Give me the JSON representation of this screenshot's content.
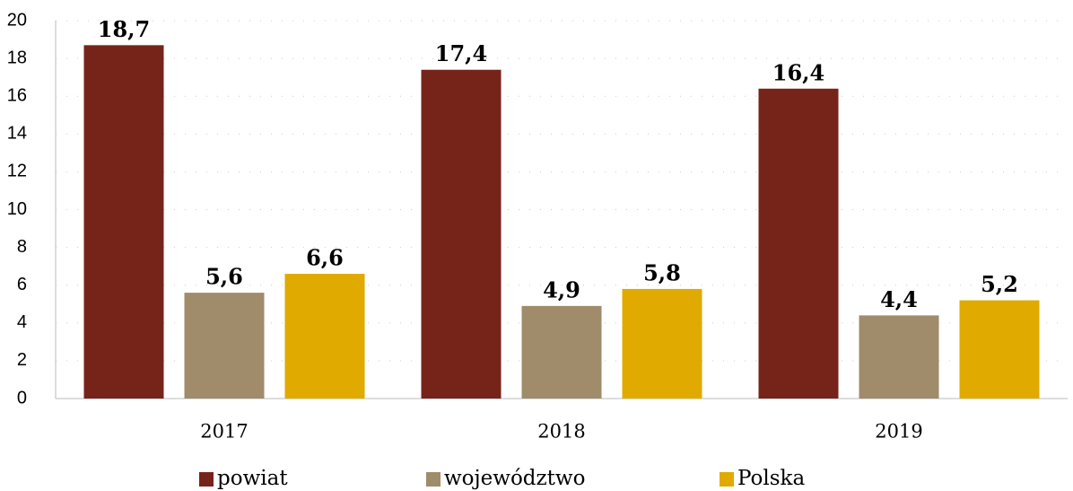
{
  "chart_data": {
    "type": "bar",
    "categories": [
      "2017",
      "2018",
      "2019"
    ],
    "series": [
      {
        "name": "powiat",
        "color": "#76231a",
        "values": [
          18.7,
          17.4,
          16.4
        ],
        "value_labels": [
          "18,7",
          "17,4",
          "16,4"
        ]
      },
      {
        "name": "województwo",
        "color": "#a08b6b",
        "values": [
          5.6,
          4.9,
          4.4
        ],
        "value_labels": [
          "5,6",
          "4,9",
          "4,4"
        ]
      },
      {
        "name": "Polska",
        "color": "#e0aa00",
        "values": [
          6.6,
          5.8,
          5.2
        ],
        "value_labels": [
          "6,6",
          "5,8",
          "5,2"
        ]
      }
    ],
    "ylim": [
      0,
      20
    ],
    "yticks": [
      0,
      2,
      4,
      6,
      8,
      10,
      12,
      14,
      16,
      18,
      20
    ],
    "grid": true,
    "legend": "bottom"
  }
}
